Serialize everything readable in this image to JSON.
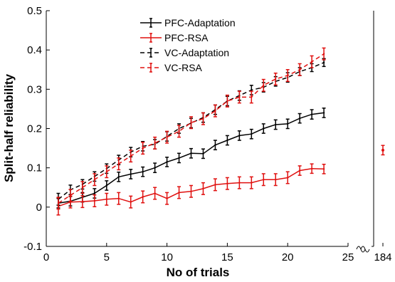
{
  "chart_data": {
    "type": "line",
    "title": "",
    "xlabel": "No of trials",
    "ylabel": "Split-half reliability",
    "xlim": [
      0,
      25
    ],
    "ylim": [
      -0.1,
      0.5
    ],
    "x_ticks": [
      "0",
      "5",
      "10",
      "15",
      "20",
      "25"
    ],
    "y_ticks": [
      "-0.1",
      "0",
      "0.1",
      "0.2",
      "0.3",
      "0.4",
      "0.5"
    ],
    "broken_axis_label": "184",
    "grid": false,
    "legend_position": "top-left",
    "x": [
      1,
      2,
      3,
      4,
      5,
      6,
      7,
      8,
      9,
      10,
      11,
      12,
      13,
      14,
      15,
      16,
      17,
      18,
      19,
      20,
      21,
      22,
      23
    ],
    "series": [
      {
        "name": "PFC-Adaptation",
        "color": "#000000",
        "dashed": false,
        "values": [
          0.01,
          0.015,
          0.025,
          0.035,
          0.055,
          0.077,
          0.084,
          0.09,
          0.1,
          0.115,
          0.125,
          0.137,
          0.136,
          0.158,
          0.17,
          0.182,
          0.186,
          0.2,
          0.21,
          0.212,
          0.226,
          0.236,
          0.24
        ],
        "errors": [
          0.012,
          0.012,
          0.012,
          0.012,
          0.012,
          0.012,
          0.012,
          0.012,
          0.012,
          0.012,
          0.012,
          0.012,
          0.012,
          0.012,
          0.012,
          0.012,
          0.012,
          0.012,
          0.012,
          0.012,
          0.012,
          0.012,
          0.012
        ]
      },
      {
        "name": "PFC-RSA",
        "color": "#e0100f",
        "dashed": false,
        "values": [
          0.002,
          0.013,
          0.014,
          0.016,
          0.02,
          0.022,
          0.013,
          0.026,
          0.035,
          0.022,
          0.037,
          0.04,
          0.047,
          0.057,
          0.06,
          0.062,
          0.062,
          0.07,
          0.07,
          0.075,
          0.093,
          0.098,
          0.097
        ],
        "errors": [
          0.022,
          0.015,
          0.015,
          0.015,
          0.015,
          0.015,
          0.015,
          0.015,
          0.015,
          0.015,
          0.015,
          0.015,
          0.015,
          0.015,
          0.015,
          0.015,
          0.015,
          0.015,
          0.015,
          0.015,
          0.012,
          0.012,
          0.012
        ]
      },
      {
        "name": "VC-Adaptation",
        "color": "#000000",
        "dashed": true,
        "values": [
          0.02,
          0.044,
          0.058,
          0.078,
          0.098,
          0.12,
          0.14,
          0.155,
          0.16,
          0.18,
          0.2,
          0.214,
          0.228,
          0.248,
          0.27,
          0.284,
          0.298,
          0.305,
          0.32,
          0.33,
          0.345,
          0.355,
          0.368
        ],
        "errors": [
          0.015,
          0.012,
          0.012,
          0.012,
          0.012,
          0.012,
          0.012,
          0.012,
          0.012,
          0.012,
          0.012,
          0.012,
          0.012,
          0.012,
          0.012,
          0.012,
          0.012,
          0.012,
          0.012,
          0.012,
          0.01,
          0.01,
          0.01
        ]
      },
      {
        "name": "VC-RSA",
        "color": "#e0100f",
        "dashed": true,
        "values": [
          0.01,
          0.03,
          0.05,
          0.07,
          0.09,
          0.11,
          0.13,
          0.15,
          0.163,
          0.178,
          0.193,
          0.215,
          0.225,
          0.245,
          0.27,
          0.28,
          0.28,
          0.31,
          0.326,
          0.335,
          0.35,
          0.37,
          0.39
        ],
        "errors": [
          0.015,
          0.015,
          0.015,
          0.015,
          0.015,
          0.015,
          0.015,
          0.015,
          0.015,
          0.015,
          0.015,
          0.015,
          0.015,
          0.015,
          0.015,
          0.015,
          0.015,
          0.015,
          0.015,
          0.015,
          0.015,
          0.015,
          0.015
        ]
      }
    ],
    "broken_axis_point": {
      "x_label": "184",
      "value": 0.145,
      "error": 0.012,
      "color": "#e0100f"
    }
  }
}
